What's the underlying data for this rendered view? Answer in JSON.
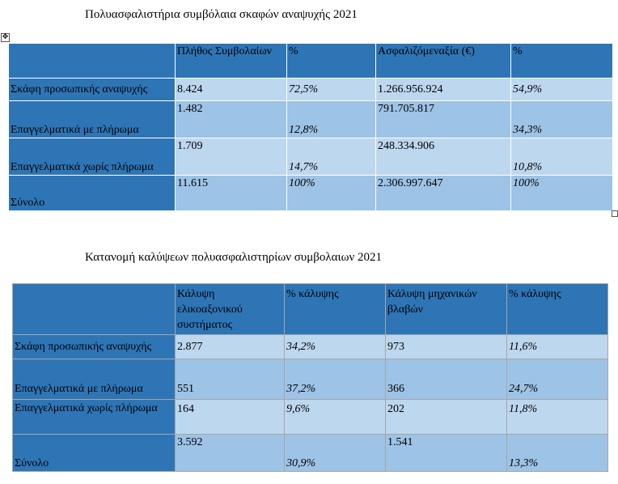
{
  "table1": {
    "title": "Πολυασφαλιστήρια συμβόλαια σκαφών αναψυχής 2021",
    "headers": [
      "",
      "Πλήθος Συμβολαίων",
      "%",
      "Ασφαλιζόμεναξία (€)",
      "%"
    ],
    "rows": [
      {
        "label": "Σκάφη προσωπικής αναψυχής",
        "count": "8.424",
        "pct1": "72,5%",
        "value": "1.266.956.924",
        "pct2": "54,9%"
      },
      {
        "label": "Επαγγελματικά  με  πλήρωμα",
        "count": "1.482",
        "pct1": "12,8%",
        "value": "791.705.817",
        "pct2": "34,3%"
      },
      {
        "label": "Επαγγελματικά χωρίς πλήρωμα",
        "count": "1.709",
        "pct1": "14,7%",
        "value": "248.334.906",
        "pct2": "10,8%"
      },
      {
        "label": "Σύνολο",
        "count": "11.615",
        "pct1": "100%",
        "value": "2.306.997.647",
        "pct2": "100%"
      }
    ]
  },
  "table2": {
    "title": "Κατανομή καλύψεων πολυασφαλιστηρίων συμβολαιων 2021",
    "headers": [
      "",
      "Κάλυψη ελικοαξονικού συστήματος",
      "% κάλυψης",
      "Κάλυψη μηχανικών βλαβών",
      "% κάλυψης"
    ],
    "rows": [
      {
        "label": "Σκάφη προσωπικής αναψυχής",
        "c1": "2.877",
        "p1": "34,2%",
        "c2": "973",
        "p2": "11,6%"
      },
      {
        "label": "Επαγγελματικά  με  πλήρωμα",
        "c1": "551",
        "p1": "37,2%",
        "c2": "366",
        "p2": "24,7%"
      },
      {
        "label": "Επαγγελματικά χωρίς πλήρωμα",
        "c1": "164",
        "p1": "9,6%",
        "c2": "202",
        "p2": "11,8%"
      },
      {
        "label": "Σύνολο",
        "c1": "3.592",
        "p1": "30,9%",
        "c2": "1.541",
        "p2": "13,3%"
      }
    ]
  },
  "icons": {
    "move": "move-handle-icon",
    "resize": "resize-handle-icon"
  }
}
